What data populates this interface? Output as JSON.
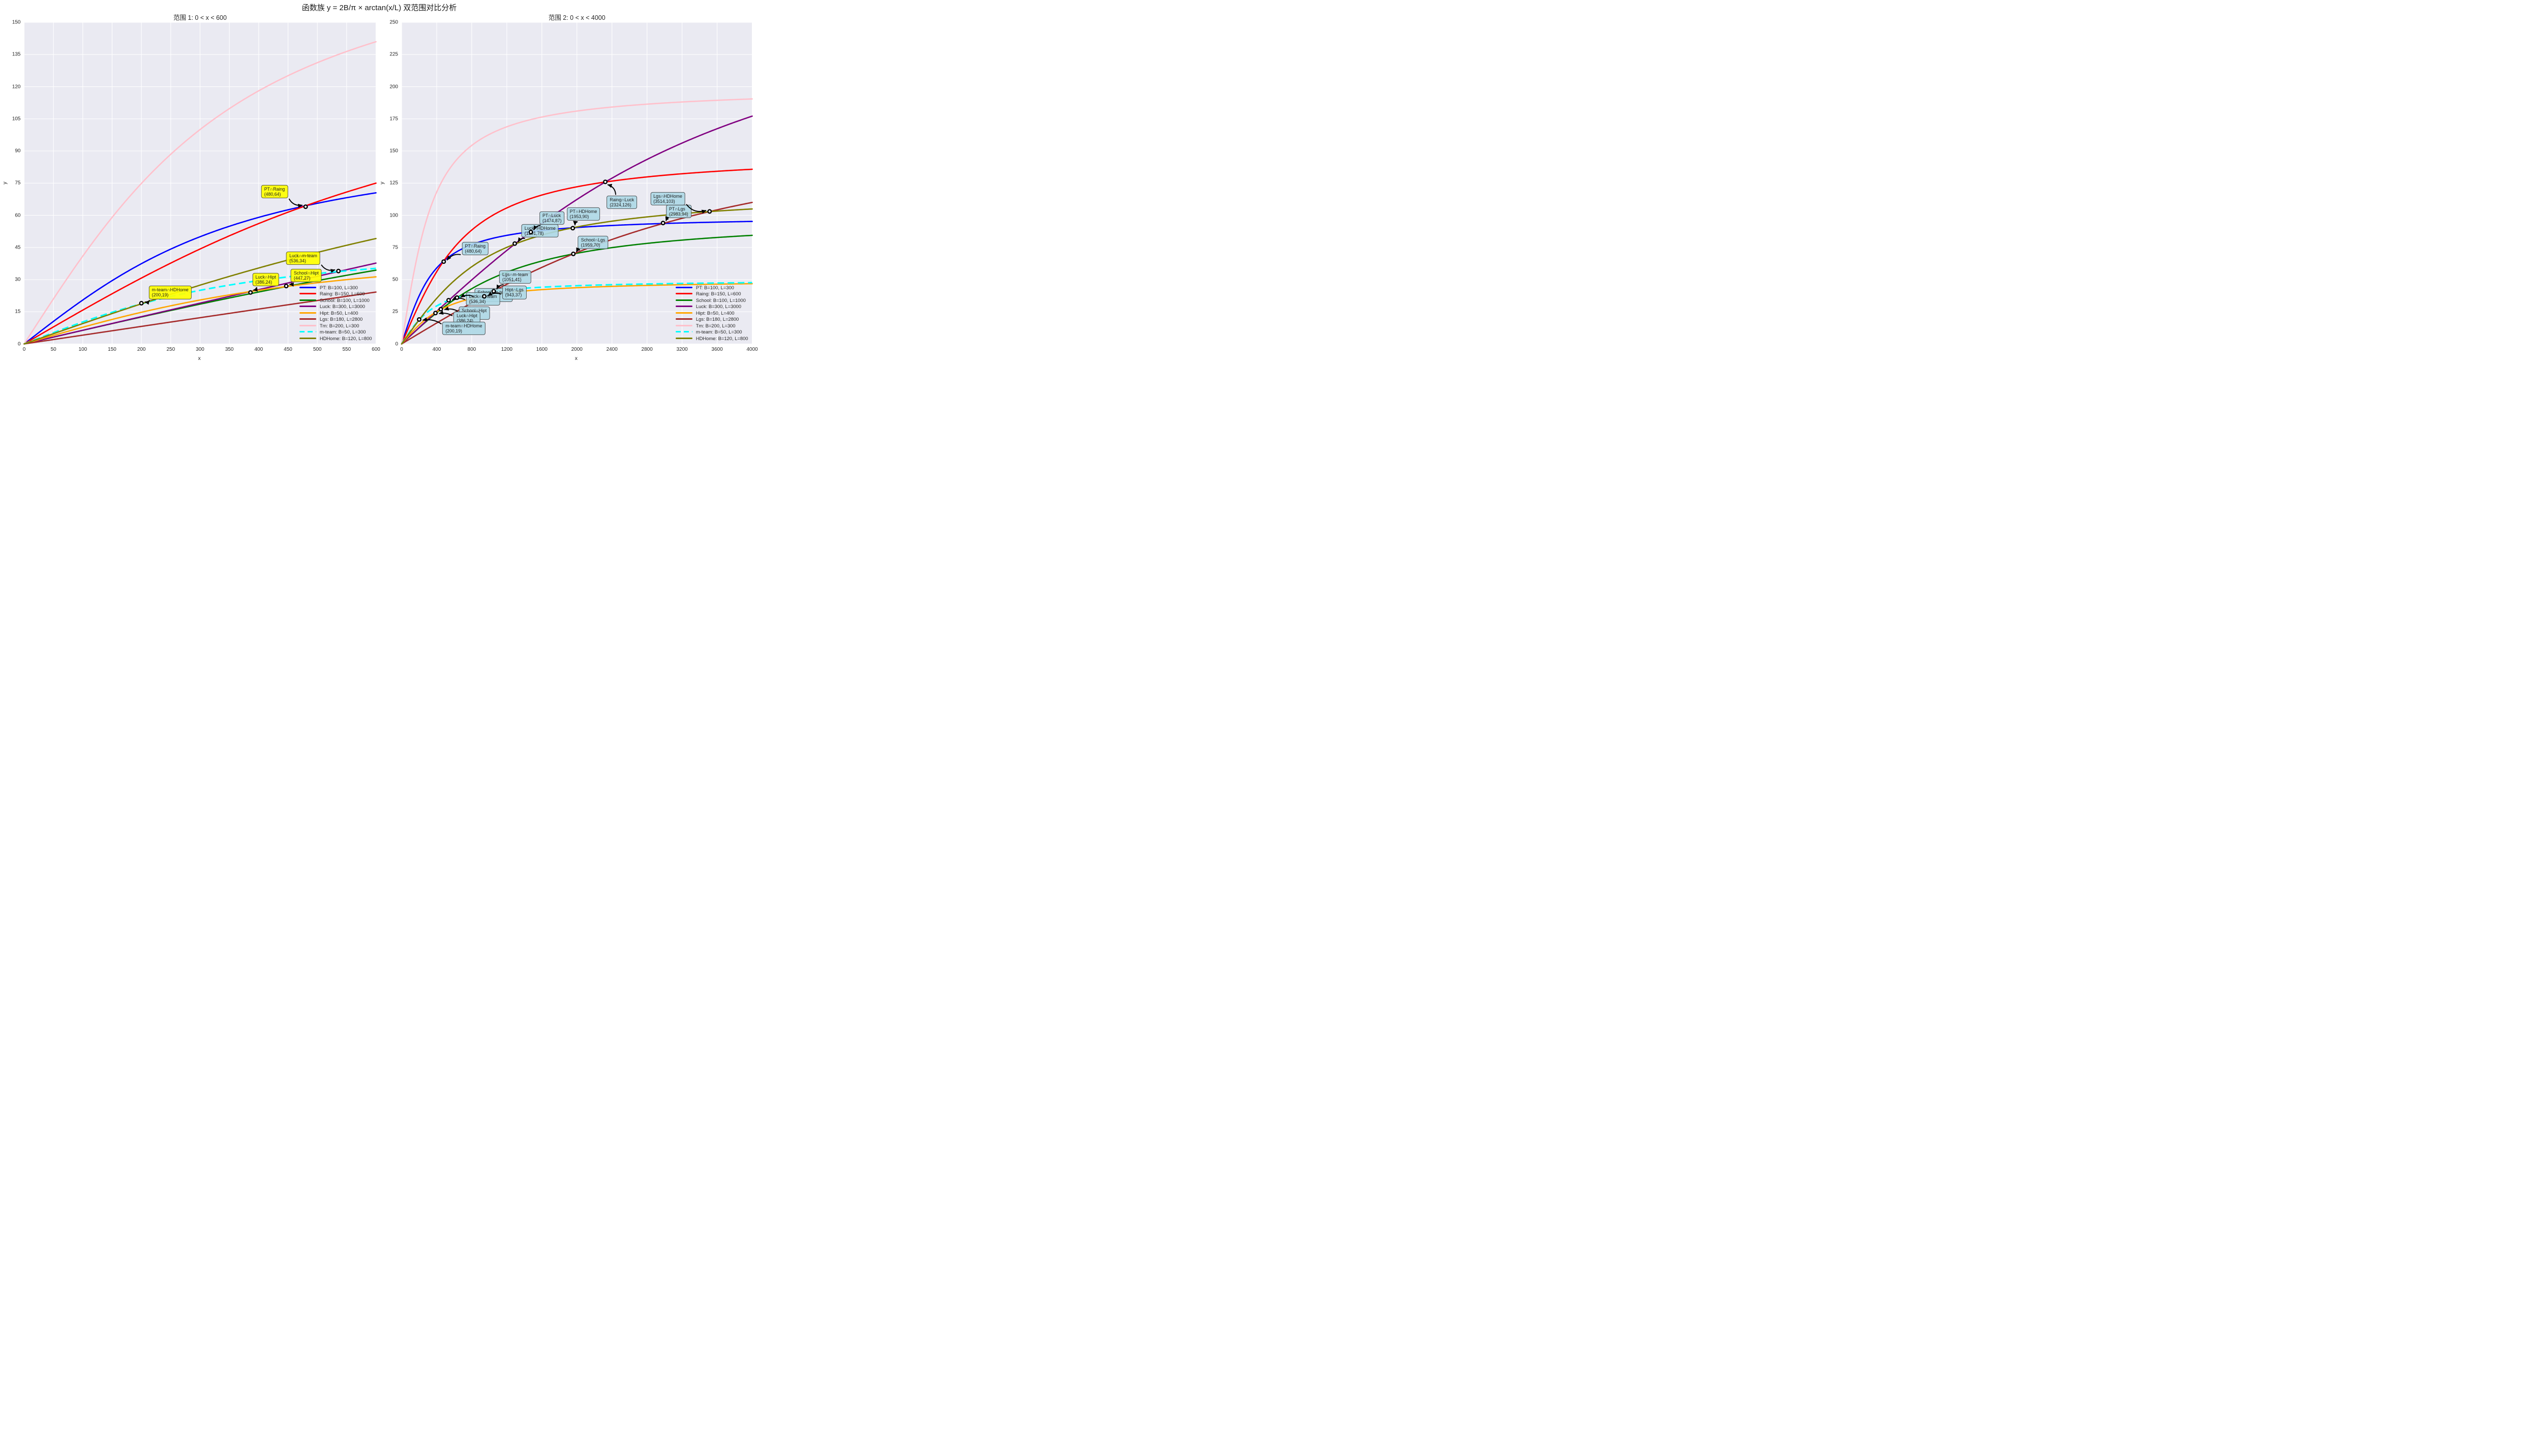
{
  "chart_data": {
    "type": "line",
    "suptitle": "函数族 y = 2B/π × arctan(x/L) 双范围对比分析",
    "formula": "y = 2B/pi * arctan(x/L)",
    "grid": true,
    "style": {
      "axes_background": "#eaeaf2",
      "grid_color": "#ffffff",
      "text_color": "#262626",
      "marker_fill": "#ffffff",
      "marker_edge": "#000000",
      "arrow_color": "#000000"
    },
    "series": [
      {
        "name": "PT",
        "label": "PT: B=100, L=300",
        "B": 100,
        "L": 300,
        "color": "#0000ff",
        "dash": false
      },
      {
        "name": "Raing",
        "label": "Raing: B=150, L=600",
        "B": 150,
        "L": 600,
        "color": "#ff0000",
        "dash": false
      },
      {
        "name": "School",
        "label": "School: B=100, L=1000",
        "B": 100,
        "L": 1000,
        "color": "#008000",
        "dash": false
      },
      {
        "name": "Luck",
        "label": "Luck: B=300, L=3000",
        "B": 300,
        "L": 3000,
        "color": "#800080",
        "dash": false
      },
      {
        "name": "Hipt",
        "label": "Hipt: B=50, L=400",
        "B": 50,
        "L": 400,
        "color": "#ffa500",
        "dash": false
      },
      {
        "name": "Lgs",
        "label": "Lgs: B=180, L=2800",
        "B": 180,
        "L": 2800,
        "color": "#a52a2a",
        "dash": false
      },
      {
        "name": "Tm",
        "label": "Tm: B=200, L=300",
        "B": 200,
        "L": 300,
        "color": "#ffc0cb",
        "dash": false
      },
      {
        "name": "m-team",
        "label": "m-team: B=50, L=300",
        "B": 50,
        "L": 300,
        "color": "#00ffff",
        "dash": true
      },
      {
        "name": "HDHome",
        "label": "HDHome: B=120, L=800",
        "B": 120,
        "L": 800,
        "color": "#808000",
        "dash": false
      }
    ],
    "legend_position": "lower right",
    "subplots": [
      {
        "title": "范围 1: 0 < x < 600",
        "xlabel": "x",
        "ylabel": "y",
        "xlim": [
          0,
          600
        ],
        "ylim": [
          0,
          150
        ],
        "xticks": [
          0,
          50,
          100,
          150,
          200,
          250,
          300,
          350,
          400,
          450,
          500,
          550,
          600
        ],
        "yticks": [
          0,
          15,
          30,
          45,
          60,
          75,
          90,
          105,
          120,
          135,
          150
        ],
        "annotation_fill": "rgba(255,255,0,0.92)",
        "annotations": [
          {
            "label": "PT∩Raing",
            "coords": "(480,64)",
            "x": 480,
            "y": 64,
            "lx": 427,
            "ly": 71,
            "rad": 0.35
          },
          {
            "label": "Luck∩m-team",
            "coords": "(536,34)",
            "x": 536,
            "y": 34,
            "lx": 476,
            "ly": 40,
            "rad": 0.35
          },
          {
            "label": "School∩Hipt",
            "coords": "(447,27)",
            "x": 447,
            "y": 27,
            "lx": 481,
            "ly": 32,
            "rad": -0.3
          },
          {
            "label": "Luck∩Hipt",
            "coords": "(386,24)",
            "x": 386,
            "y": 24,
            "lx": 412,
            "ly": 30,
            "rad": -0.3
          },
          {
            "label": "m-team∩HDHome",
            "coords": "(200,19)",
            "x": 200,
            "y": 19,
            "lx": 249,
            "ly": 24,
            "rad": -0.3
          }
        ]
      },
      {
        "title": "范围 2: 0 < x < 4000",
        "xlabel": "x",
        "ylabel": "y",
        "xlim": [
          0,
          4000
        ],
        "ylim": [
          0,
          250
        ],
        "xticks": [
          0,
          400,
          800,
          1200,
          1600,
          2000,
          2400,
          2800,
          3200,
          3600,
          4000
        ],
        "yticks": [
          0,
          25,
          50,
          75,
          100,
          125,
          150,
          175,
          200,
          225,
          250
        ],
        "annotation_fill": "rgba(173,216,230,0.9)",
        "annotations": [
          {
            "label": "School∩m-team",
            "coords": "(632,36)",
            "x": 632,
            "y": 36,
            "lx": 1048,
            "ly": 38,
            "rad": 0.25
          },
          {
            "label": "Hipt∩Lgs",
            "coords": "(943,37)",
            "x": 943,
            "y": 37,
            "lx": 1286,
            "ly": 40,
            "rad": 0.25
          },
          {
            "label": "School∩Hipt",
            "coords": "(447,27)",
            "x": 447,
            "y": 27,
            "lx": 828,
            "ly": 24,
            "rad": 0.2
          },
          {
            "label": "Luck∩Hipt",
            "coords": "(386,24)",
            "x": 386,
            "y": 24,
            "lx": 745,
            "ly": 20,
            "rad": 0.2
          },
          {
            "label": "m-team∩HDHome",
            "coords": "(200,19)",
            "x": 200,
            "y": 19,
            "lx": 710,
            "ly": 12,
            "rad": 0.2
          },
          {
            "label": "Luck∩m-team",
            "coords": "(536,34)",
            "x": 536,
            "y": 34,
            "lx": 928,
            "ly": 35,
            "rad": 0.25
          },
          {
            "label": "Lgs∩m-team",
            "coords": "(1051,41)",
            "x": 1051,
            "y": 41,
            "lx": 1295,
            "ly": 52,
            "rad": 0.3
          },
          {
            "label": "PT∩Raing",
            "coords": "(480,64)",
            "x": 480,
            "y": 64,
            "lx": 840,
            "ly": 74,
            "rad": 0.3
          },
          {
            "label": "Luck∩HDHome",
            "coords": "(1291,78)",
            "x": 1291,
            "y": 78,
            "lx": 1580,
            "ly": 88,
            "rad": 0.3
          },
          {
            "label": "PT∩Luck",
            "coords": "(1474,87)",
            "x": 1474,
            "y": 87,
            "lx": 1716,
            "ly": 98,
            "rad": 0.3
          },
          {
            "label": "PT∩HDHome",
            "coords": "(1953,90)",
            "x": 1953,
            "y": 90,
            "lx": 2074,
            "ly": 101,
            "rad": 0.35
          },
          {
            "label": "School∩Lgs",
            "coords": "(1959,70)",
            "x": 1959,
            "y": 70,
            "lx": 2184,
            "ly": 79,
            "rad": 0.35
          },
          {
            "label": "Raing∩Luck",
            "coords": "(2324,126)",
            "x": 2324,
            "y": 126,
            "lx": 2513,
            "ly": 110,
            "rad": 0.35
          },
          {
            "label": "PT∩Lgs",
            "coords": "(2983,94)",
            "x": 2983,
            "y": 94,
            "lx": 3161,
            "ly": 103,
            "rad": 0.35
          },
          {
            "label": "Lgs∩HDHome",
            "coords": "(3514,103)",
            "x": 3514,
            "y": 103,
            "lx": 3037,
            "ly": 113,
            "rad": 0.35
          }
        ]
      }
    ]
  }
}
